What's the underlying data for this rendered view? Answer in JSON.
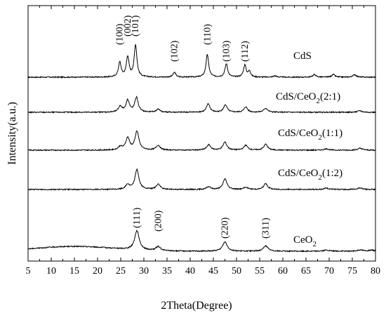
{
  "chart_data": {
    "type": "line",
    "xlabel": "2Theta(Degree)",
    "ylabel": "Intensity(a.u.)",
    "xlim": [
      5,
      80
    ],
    "x_ticks": [
      5,
      10,
      15,
      20,
      25,
      30,
      35,
      40,
      45,
      50,
      55,
      60,
      65,
      70,
      75,
      80
    ],
    "y_ticks_shown": false,
    "grid": false,
    "series": [
      {
        "name": "CdS",
        "label_main": "CdS",
        "label_sub": "",
        "label_tail": "",
        "baseline": 4.3,
        "peaks": [
          {
            "x": 24.8,
            "h": 0.55,
            "w": 0.35
          },
          {
            "x": 26.5,
            "h": 0.75,
            "w": 0.35
          },
          {
            "x": 28.2,
            "h": 1.2,
            "w": 0.35
          },
          {
            "x": 36.6,
            "h": 0.18,
            "w": 0.35
          },
          {
            "x": 43.7,
            "h": 0.85,
            "w": 0.35
          },
          {
            "x": 47.8,
            "h": 0.5,
            "w": 0.35
          },
          {
            "x": 51.8,
            "h": 0.45,
            "w": 0.35
          },
          {
            "x": 52.8,
            "h": 0.22,
            "w": 0.3
          },
          {
            "x": 58.3,
            "h": 0.05,
            "w": 0.4
          },
          {
            "x": 66.8,
            "h": 0.1,
            "w": 0.4
          },
          {
            "x": 70.9,
            "h": 0.1,
            "w": 0.4
          },
          {
            "x": 75.5,
            "h": 0.1,
            "w": 0.4
          }
        ]
      },
      {
        "name": "CdS/CeO2(2:1)",
        "label_main": "CdS/CeO",
        "label_sub": "2",
        "label_tail": "(2:1)",
        "baseline": 3.2,
        "peaks": [
          {
            "x": 24.9,
            "h": 0.22,
            "w": 0.45
          },
          {
            "x": 26.5,
            "h": 0.45,
            "w": 0.45
          },
          {
            "x": 28.4,
            "h": 0.55,
            "w": 0.45
          },
          {
            "x": 33.1,
            "h": 0.12,
            "w": 0.45
          },
          {
            "x": 43.9,
            "h": 0.32,
            "w": 0.45
          },
          {
            "x": 47.6,
            "h": 0.28,
            "w": 0.45
          },
          {
            "x": 52.0,
            "h": 0.2,
            "w": 0.45
          },
          {
            "x": 56.3,
            "h": 0.15,
            "w": 0.5
          },
          {
            "x": 76.6,
            "h": 0.06,
            "w": 0.5
          }
        ]
      },
      {
        "name": "CdS/CeO2(1:1)",
        "label_main": "CdS/CeO",
        "label_sub": "2",
        "label_tail": "(1:1)",
        "baseline": 2.2,
        "peaks": [
          {
            "x": 24.9,
            "h": 0.12,
            "w": 0.5
          },
          {
            "x": 26.5,
            "h": 0.45,
            "w": 0.5
          },
          {
            "x": 28.5,
            "h": 0.7,
            "w": 0.5
          },
          {
            "x": 33.1,
            "h": 0.18,
            "w": 0.5
          },
          {
            "x": 44.0,
            "h": 0.2,
            "w": 0.5
          },
          {
            "x": 47.5,
            "h": 0.3,
            "w": 0.5
          },
          {
            "x": 52.0,
            "h": 0.18,
            "w": 0.5
          },
          {
            "x": 56.3,
            "h": 0.22,
            "w": 0.5
          },
          {
            "x": 69.4,
            "h": 0.05,
            "w": 0.6
          },
          {
            "x": 76.7,
            "h": 0.07,
            "w": 0.6
          }
        ]
      },
      {
        "name": "CdS/CeO2(1:2)",
        "label_main": "CdS/CeO",
        "label_sub": "2",
        "label_tail": "(1:2)",
        "baseline": 1.2,
        "peaks": [
          {
            "x": 26.5,
            "h": 0.18,
            "w": 0.5
          },
          {
            "x": 28.5,
            "h": 0.75,
            "w": 0.5
          },
          {
            "x": 33.1,
            "h": 0.2,
            "w": 0.5
          },
          {
            "x": 44.0,
            "h": 0.1,
            "w": 0.5
          },
          {
            "x": 47.5,
            "h": 0.4,
            "w": 0.5
          },
          {
            "x": 52.0,
            "h": 0.08,
            "w": 0.5
          },
          {
            "x": 56.3,
            "h": 0.22,
            "w": 0.5
          },
          {
            "x": 69.4,
            "h": 0.05,
            "w": 0.6
          },
          {
            "x": 76.7,
            "h": 0.06,
            "w": 0.6
          }
        ]
      },
      {
        "name": "CeO2",
        "label_main": "CeO",
        "label_sub": "2",
        "label_tail": "",
        "baseline": 0.0,
        "peaks": [
          {
            "x": 28.5,
            "h": 0.72,
            "w": 0.6
          },
          {
            "x": 33.1,
            "h": 0.15,
            "w": 0.6
          },
          {
            "x": 47.5,
            "h": 0.35,
            "w": 0.6
          },
          {
            "x": 56.3,
            "h": 0.2,
            "w": 0.6
          },
          {
            "x": 69.4,
            "h": 0.04,
            "w": 0.7
          },
          {
            "x": 76.7,
            "h": 0.05,
            "w": 0.7
          },
          {
            "x": 79.1,
            "h": 0.04,
            "w": 0.7
          }
        ]
      }
    ],
    "peak_labels_cds": [
      "(100)",
      "(002)",
      "(101)",
      "(102)",
      "(110)",
      "(103)",
      "(112)"
    ],
    "peak_labels_ceo2": [
      "(111)",
      "(200)",
      "(220)",
      "(311)"
    ]
  }
}
